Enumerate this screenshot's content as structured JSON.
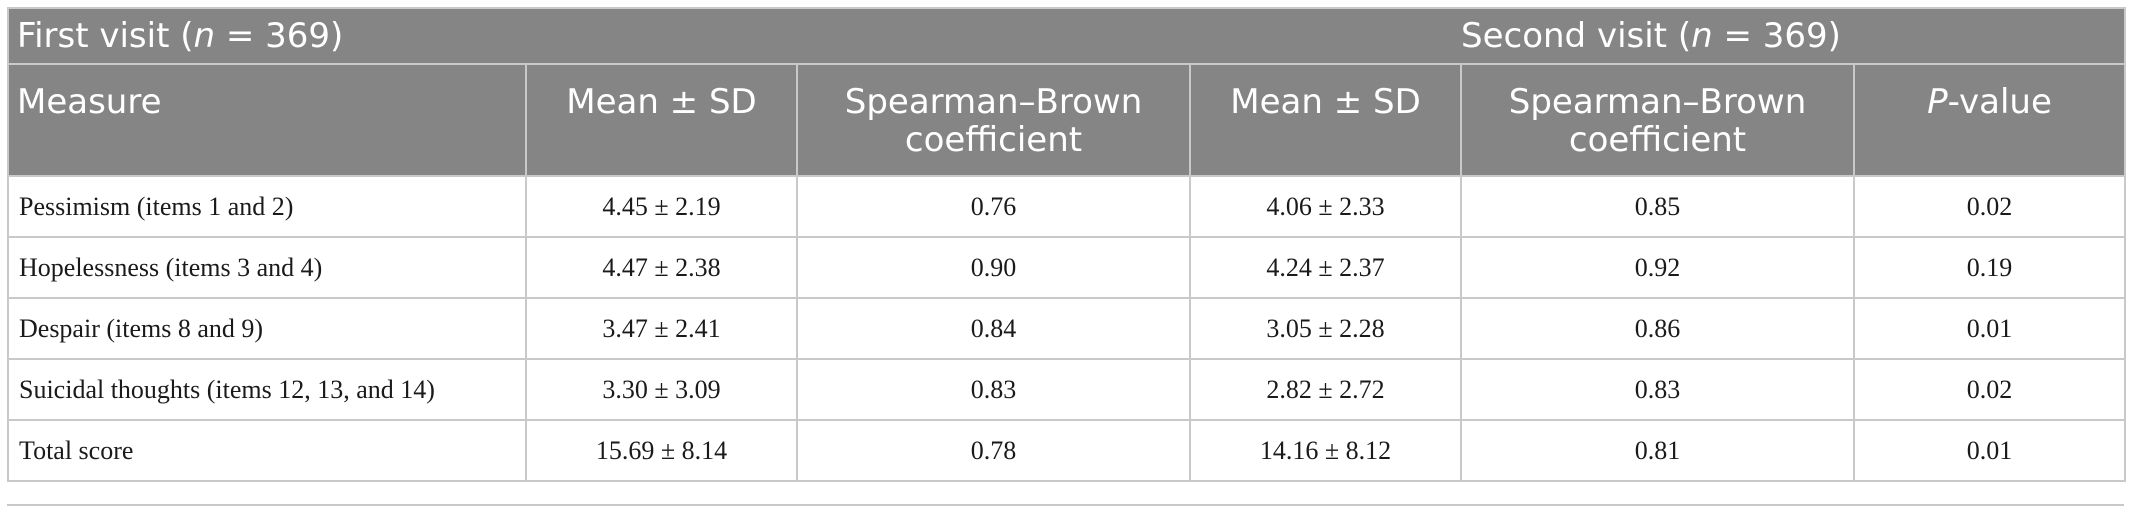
{
  "groups": {
    "first": {
      "prefix": "First visit (",
      "n": "n",
      "suffix": " = 369)"
    },
    "second": {
      "prefix": "Second visit (",
      "n": "n",
      "suffix": " = 369)"
    }
  },
  "columns": {
    "measure": "Measure",
    "mean1": "Mean ± SD",
    "sb1": "Spearman–Brown coefficient",
    "mean2": "Mean ± SD",
    "sb2": "Spearman–Brown coefficient",
    "p_italic": "P",
    "p_rest": "-value"
  },
  "rows": [
    {
      "measure": "Pessimism (items 1 and 2)",
      "mean1": "4.45 ± 2.19",
      "sb1": "0.76",
      "mean2": "4.06 ± 2.33",
      "sb2": "0.85",
      "p": "0.02"
    },
    {
      "measure": "Hopelessness (items 3 and 4)",
      "mean1": "4.47 ± 2.38",
      "sb1": "0.90",
      "mean2": "4.24 ± 2.37",
      "sb2": "0.92",
      "p": "0.19"
    },
    {
      "measure": "Despair (items 8 and 9)",
      "mean1": "3.47 ± 2.41",
      "sb1": "0.84",
      "mean2": "3.05 ± 2.28",
      "sb2": "0.86",
      "p": "0.01"
    },
    {
      "measure": "Suicidal thoughts (items 12, 13, and 14)",
      "mean1": "3.30 ± 3.09",
      "sb1": "0.83",
      "mean2": "2.82 ± 2.72",
      "sb2": "0.83",
      "p": "0.02"
    },
    {
      "measure": "Total score",
      "mean1": "15.69 ± 8.14",
      "sb1": "0.78",
      "mean2": "14.16 ± 8.12",
      "sb2": "0.81",
      "p": "0.01"
    }
  ]
}
